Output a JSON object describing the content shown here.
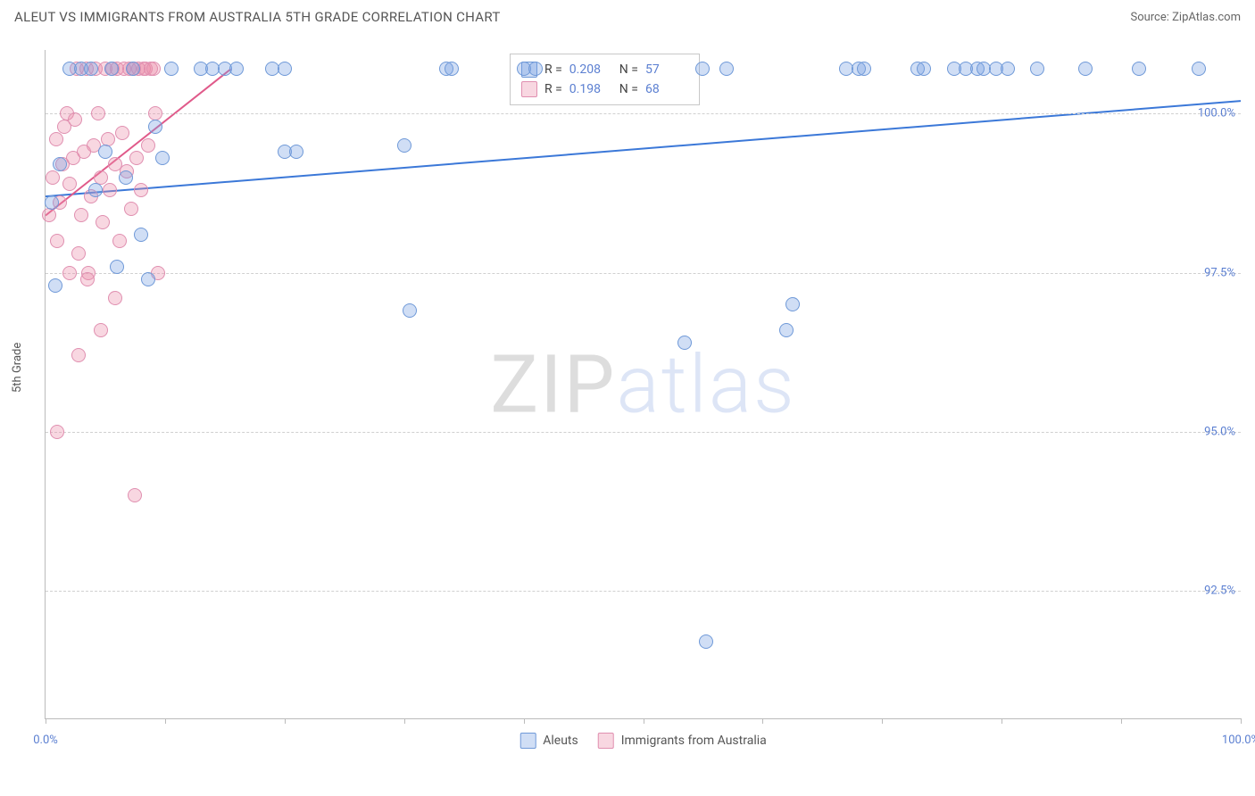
{
  "title": "ALEUT VS IMMIGRANTS FROM AUSTRALIA 5TH GRADE CORRELATION CHART",
  "source_label": "Source: ZipAtlas.com",
  "y_axis_label": "5th Grade",
  "watermark": {
    "part1": "ZIP",
    "part2": "atlas"
  },
  "colors": {
    "series1_fill": "rgba(120,160,225,0.35)",
    "series1_stroke": "#6f99d8",
    "series2_fill": "rgba(235,140,170,0.35)",
    "series2_stroke": "#e08fb0",
    "trend1": "#3b78d8",
    "trend2": "#e05a8a",
    "axis_text": "#5b7fd1",
    "grid": "#d0d0d0"
  },
  "marker_radius": 8,
  "chart": {
    "xlim": [
      0,
      100
    ],
    "ylim": [
      90.5,
      101.0
    ],
    "y_ticks": [
      92.5,
      95.0,
      97.5,
      100.0
    ],
    "y_tick_labels": [
      "92.5%",
      "95.0%",
      "97.5%",
      "100.0%"
    ],
    "x_ticks": [
      0,
      10,
      20,
      30,
      40,
      50,
      60,
      70,
      80,
      90,
      100
    ],
    "x_label_min": "0.0%",
    "x_label_max": "100.0%"
  },
  "legend_stats": {
    "series1": {
      "R_label": "R =",
      "R": "0.208",
      "N_label": "N =",
      "N": "57"
    },
    "series2": {
      "R_label": "R =",
      "R": "0.198",
      "N_label": "N =",
      "N": "68"
    }
  },
  "bottom_legend": {
    "series1": "Aleuts",
    "series2": "Immigrants from Australia"
  },
  "trend_lines": {
    "series1": {
      "x1": 0,
      "y1": 98.7,
      "x2": 100,
      "y2": 100.2
    },
    "series2": {
      "x1": 0,
      "y1": 98.4,
      "x2": 15.5,
      "y2": 100.7
    }
  },
  "series1_points": [
    [
      0.5,
      98.6
    ],
    [
      0.8,
      97.3
    ],
    [
      1.2,
      99.2
    ],
    [
      2.0,
      100.7
    ],
    [
      3.0,
      100.7
    ],
    [
      3.8,
      100.7
    ],
    [
      4.2,
      98.8
    ],
    [
      5.0,
      99.4
    ],
    [
      5.5,
      100.7
    ],
    [
      6.0,
      97.6
    ],
    [
      6.7,
      99.0
    ],
    [
      7.3,
      100.7
    ],
    [
      8.0,
      98.1
    ],
    [
      8.6,
      97.4
    ],
    [
      9.2,
      99.8
    ],
    [
      9.8,
      99.3
    ],
    [
      10.5,
      100.7
    ],
    [
      13.0,
      100.7
    ],
    [
      14.0,
      100.7
    ],
    [
      15.0,
      100.7
    ],
    [
      16.0,
      100.7
    ],
    [
      19.0,
      100.7
    ],
    [
      20.0,
      100.7
    ],
    [
      20.0,
      99.4
    ],
    [
      21.0,
      99.4
    ],
    [
      30.0,
      99.5
    ],
    [
      30.5,
      96.9
    ],
    [
      33.5,
      100.7
    ],
    [
      34.0,
      100.7
    ],
    [
      40.0,
      100.7
    ],
    [
      41.0,
      100.7
    ],
    [
      53.5,
      96.4
    ],
    [
      55.0,
      100.7
    ],
    [
      55.3,
      91.7
    ],
    [
      57.0,
      100.7
    ],
    [
      62.0,
      96.6
    ],
    [
      62.5,
      97.0
    ],
    [
      67.0,
      100.7
    ],
    [
      68.0,
      100.7
    ],
    [
      68.5,
      100.7
    ],
    [
      73.0,
      100.7
    ],
    [
      73.5,
      100.7
    ],
    [
      76.0,
      100.7
    ],
    [
      77.0,
      100.7
    ],
    [
      78.0,
      100.7
    ],
    [
      78.5,
      100.7
    ],
    [
      79.5,
      100.7
    ],
    [
      80.5,
      100.7
    ],
    [
      83.0,
      100.7
    ],
    [
      87.0,
      100.7
    ],
    [
      91.5,
      100.7
    ],
    [
      96.5,
      100.7
    ]
  ],
  "series2_points": [
    [
      0.3,
      98.4
    ],
    [
      0.6,
      99.0
    ],
    [
      0.9,
      99.6
    ],
    [
      1.0,
      98.0
    ],
    [
      1.2,
      98.6
    ],
    [
      1.4,
      99.2
    ],
    [
      1.6,
      99.8
    ],
    [
      1.8,
      100.0
    ],
    [
      2.0,
      97.5
    ],
    [
      2.0,
      98.9
    ],
    [
      2.3,
      99.3
    ],
    [
      2.5,
      99.9
    ],
    [
      2.6,
      100.7
    ],
    [
      2.8,
      97.8
    ],
    [
      3.0,
      98.4
    ],
    [
      3.2,
      99.4
    ],
    [
      3.4,
      100.7
    ],
    [
      3.6,
      97.5
    ],
    [
      3.8,
      98.7
    ],
    [
      4.0,
      99.5
    ],
    [
      4.2,
      100.7
    ],
    [
      4.4,
      100.0
    ],
    [
      4.6,
      99.0
    ],
    [
      4.8,
      98.3
    ],
    [
      5.0,
      100.7
    ],
    [
      5.2,
      99.6
    ],
    [
      5.4,
      98.8
    ],
    [
      5.6,
      100.7
    ],
    [
      5.8,
      99.2
    ],
    [
      6.0,
      100.7
    ],
    [
      6.2,
      98.0
    ],
    [
      6.4,
      99.7
    ],
    [
      6.6,
      100.7
    ],
    [
      6.8,
      99.1
    ],
    [
      7.0,
      100.7
    ],
    [
      7.2,
      98.5
    ],
    [
      7.4,
      100.7
    ],
    [
      7.6,
      99.3
    ],
    [
      7.8,
      100.7
    ],
    [
      8.0,
      98.8
    ],
    [
      8.2,
      100.7
    ],
    [
      8.4,
      100.7
    ],
    [
      8.6,
      99.5
    ],
    [
      8.8,
      100.7
    ],
    [
      9.0,
      100.7
    ],
    [
      9.2,
      100.0
    ],
    [
      9.4,
      97.5
    ],
    [
      2.8,
      96.2
    ],
    [
      3.5,
      97.4
    ],
    [
      4.6,
      96.6
    ],
    [
      5.8,
      97.1
    ],
    [
      1.0,
      95.0
    ],
    [
      7.5,
      94.0
    ]
  ]
}
